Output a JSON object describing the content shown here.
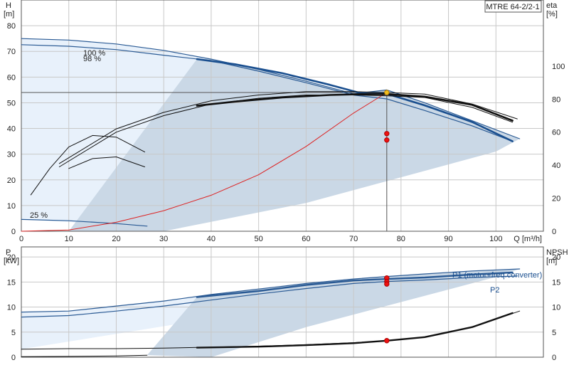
{
  "chart_data": [
    {
      "type": "line",
      "panel": "head-efficiency",
      "title": "MTRE 64-2/2-1",
      "xlabel": "Q [m³/h]",
      "xlim": [
        0,
        110
      ],
      "x_ticks": [
        "0",
        "10",
        "20",
        "30",
        "40",
        "50",
        "60",
        "70",
        "80",
        "90",
        "100"
      ],
      "y_left": {
        "label_top": "H",
        "label_unit": "[m]",
        "lim": [
          0,
          90
        ],
        "ticks": [
          "0",
          "10",
          "20",
          "30",
          "40",
          "50",
          "60",
          "70",
          "80"
        ]
      },
      "y_right": {
        "label_top": "eta",
        "label_unit": "[%]",
        "lim": [
          0,
          140
        ],
        "ticks": [
          "0",
          "20",
          "40",
          "60",
          "80",
          "100"
        ]
      },
      "speed_labels": [
        "100 %",
        "98 %",
        "25 %"
      ],
      "grid": true,
      "series": [
        {
          "name": "100 %",
          "axis": "left",
          "color": "#2a5a94",
          "width": 1.2,
          "x": [
            0,
            10,
            20,
            30,
            40,
            50,
            60,
            70,
            77,
            85,
            95,
            105
          ],
          "y": [
            75,
            74.4,
            72.9,
            70.4,
            67,
            63,
            58.4,
            53.5,
            55,
            50,
            43,
            36
          ]
        },
        {
          "name": "98 %",
          "axis": "left",
          "color": "#2a5a94",
          "width": 1.2,
          "x": [
            0,
            10,
            20,
            30,
            40,
            50,
            60,
            70,
            77,
            85,
            95,
            103.5
          ],
          "y": [
            72.6,
            72,
            70.7,
            68.5,
            66.4,
            62.3,
            57.8,
            53,
            51.5,
            47,
            41,
            35
          ]
        },
        {
          "name": "25 %",
          "axis": "left",
          "color": "#2a5a94",
          "width": 1.2,
          "x": [
            0,
            10,
            20,
            26.5
          ],
          "y": [
            4.6,
            4.1,
            3,
            2
          ]
        },
        {
          "name": "",
          "axis": "left",
          "color": "#1a4f8f",
          "width": 2.6,
          "x": [
            37,
            45,
            55,
            65,
            72,
            77,
            85,
            95,
            103.5
          ],
          "y": [
            67,
            65,
            61.5,
            57,
            53.5,
            53.5,
            49,
            42.5,
            35
          ]
        },
        {
          "name": "",
          "axis": "left",
          "color": "#dd2222",
          "width": 1,
          "x": [
            0,
            10,
            20,
            30,
            40,
            50,
            60,
            70,
            77
          ],
          "y": [
            0,
            0.5,
            3.5,
            8,
            14,
            22,
            33,
            46,
            54
          ]
        },
        {
          "name": "",
          "axis": "right",
          "color": "#111111",
          "width": 1,
          "x": [
            8,
            20,
            30,
            40,
            50,
            60,
            70,
            77,
            85,
            95,
            104.5
          ],
          "y": [
            41,
            62,
            72,
            79,
            82.5,
            84.5,
            84.5,
            84,
            83,
            77,
            68
          ]
        },
        {
          "name": "",
          "axis": "right",
          "color": "#111111",
          "width": 1,
          "x": [
            8,
            20,
            30,
            40,
            50,
            60,
            70,
            77,
            85,
            95,
            103.5
          ],
          "y": [
            39,
            60,
            70,
            77,
            80.5,
            82.5,
            82.5,
            82,
            81,
            75,
            66
          ]
        },
        {
          "name": "",
          "axis": "right",
          "color": "#111111",
          "width": 2.6,
          "x": [
            37,
            45,
            55,
            65,
            72,
            77,
            85,
            95,
            103.5
          ],
          "y": [
            76,
            78.5,
            81,
            82.5,
            83,
            83,
            81.5,
            76.5,
            67
          ]
        },
        {
          "name": "",
          "axis": "right",
          "color": "#111111",
          "width": 1,
          "x": [
            2,
            6,
            10,
            15,
            20,
            26
          ],
          "y": [
            22,
            38,
            51,
            58,
            57,
            48
          ]
        },
        {
          "name": "",
          "axis": "right",
          "color": "#111111",
          "width": 1,
          "x": [
            10,
            15,
            20,
            26
          ],
          "y": [
            38,
            44,
            45,
            39
          ]
        }
      ],
      "markers": [
        {
          "x": 77,
          "y": 54,
          "axis": "left",
          "color": "#f0c020",
          "stroke": "#c08000"
        },
        {
          "x": 77,
          "y": 38,
          "axis": "left",
          "color": "#ee1111",
          "stroke": "#aa0000"
        },
        {
          "x": 77,
          "y": 35.5,
          "axis": "left",
          "color": "#ee1111",
          "stroke": "#aa0000"
        }
      ],
      "duty_point": {
        "x": 77,
        "y": 54
      }
    },
    {
      "type": "line",
      "panel": "power-npsh",
      "xlim": [
        0,
        110
      ],
      "y_left": {
        "label_top": "P",
        "label_unit": "[kW]",
        "lim": [
          0,
          22
        ],
        "ticks": [
          "0",
          "5",
          "10",
          "15",
          "20"
        ]
      },
      "y_right": {
        "label_top": "NPSH",
        "label_unit": "[m]",
        "lim": [
          0,
          22
        ],
        "ticks": [
          "0",
          "5",
          "10",
          "15",
          "20"
        ]
      },
      "grid": true,
      "series": [
        {
          "name": "P1 (motor+freq.converter)",
          "axis": "left",
          "color": "#2a5a94",
          "width": 1.2,
          "x": [
            0,
            10,
            20,
            30,
            40,
            50,
            60,
            70,
            77,
            85,
            95,
            105
          ],
          "y": [
            9,
            9.2,
            10.2,
            11.2,
            12.5,
            13.6,
            14.7,
            15.6,
            16.1,
            16.6,
            17.2,
            17.6
          ]
        },
        {
          "name": "P2",
          "axis": "left",
          "color": "#2a5a94",
          "width": 1.2,
          "x": [
            0,
            10,
            20,
            30,
            40,
            50,
            60,
            70,
            77,
            85,
            95,
            104.5
          ],
          "y": [
            8,
            8.3,
            9.2,
            10.2,
            11.4,
            12.6,
            13.7,
            14.7,
            15.1,
            15.4,
            15.9,
            16.2
          ]
        },
        {
          "name": "",
          "axis": "left",
          "color": "#2a5a94",
          "width": 2.4,
          "x": [
            37,
            50,
            60,
            70,
            77,
            85,
            95,
            103.5
          ],
          "y": [
            12,
            13.2,
            14.4,
            15.3,
            15.6,
            15.9,
            16.5,
            16.9
          ]
        },
        {
          "name": "",
          "axis": "left",
          "color": "#111111",
          "width": 1,
          "x": [
            0,
            10,
            20,
            30,
            40,
            50,
            60,
            70,
            77,
            85,
            95,
            105
          ],
          "y": [
            1.6,
            1.7,
            1.7,
            1.8,
            2,
            2.2,
            2.5,
            2.9,
            3.3,
            4,
            6,
            9.2
          ]
        },
        {
          "name": "",
          "axis": "left",
          "color": "#111111",
          "width": 2.4,
          "x": [
            37,
            50,
            60,
            70,
            77,
            85,
            95,
            103.5
          ],
          "y": [
            1.9,
            2.1,
            2.4,
            2.8,
            3.3,
            4,
            6,
            8.8
          ]
        },
        {
          "name": "",
          "axis": "left",
          "color": "#111111",
          "width": 1,
          "x": [
            0,
            10,
            20,
            26.5
          ],
          "y": [
            0.1,
            0.15,
            0.25,
            0.4
          ]
        }
      ],
      "markers": [
        {
          "x": 77,
          "y": 15.8,
          "axis": "left",
          "color": "#ee1111",
          "stroke": "#aa0000"
        },
        {
          "x": 77,
          "y": 15.1,
          "axis": "left",
          "color": "#ee1111",
          "stroke": "#aa0000"
        },
        {
          "x": 77,
          "y": 14.6,
          "axis": "left",
          "color": "#ee1111",
          "stroke": "#aa0000"
        },
        {
          "x": 77,
          "y": 3.3,
          "axis": "left",
          "color": "#ee1111",
          "stroke": "#aa0000"
        }
      ]
    }
  ]
}
